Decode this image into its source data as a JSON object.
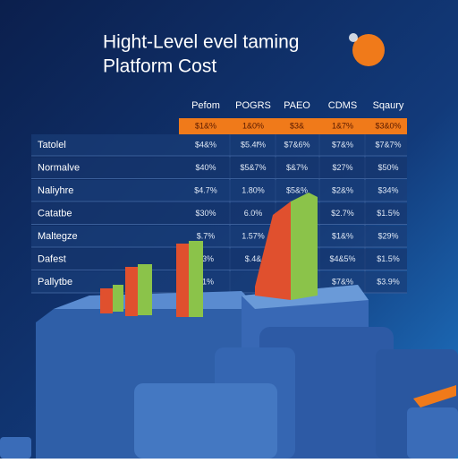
{
  "title": {
    "line1": "Hight-Level evel taming",
    "line2": "Platform Cost"
  },
  "table": {
    "header": [
      "Pefom",
      "POGRS",
      "PAEO",
      "CDMS",
      "Sqaury"
    ],
    "highlight": [
      "$1&%",
      "1&0%",
      "$3&",
      "1&7%",
      "$3&0%"
    ],
    "rows": [
      {
        "label": "Tatolel",
        "cells": [
          "$4&%",
          "$5.4f%",
          "$7&6%",
          "$7&%",
          "$7&7%"
        ]
      },
      {
        "label": "Normalve",
        "cells": [
          "$40%",
          "$5&7%",
          "$&7%",
          "$27%",
          "$50%"
        ]
      },
      {
        "label": "Naliyhre",
        "cells": [
          "$4.7%",
          "1.80%",
          "$5&%",
          "$2&%",
          "$34%"
        ]
      },
      {
        "label": "Catatbe",
        "cells": [
          "$30%",
          "6.0%",
          null,
          "$2.7%",
          "$1.5%"
        ]
      },
      {
        "label": "Maltegze",
        "cells": [
          "$.7%",
          "1.57%",
          null,
          "$1&%",
          "$29%"
        ]
      },
      {
        "label": "Dafest",
        "cells": [
          "$3%",
          "$.4&",
          null,
          "$4&5%",
          "$1.5%"
        ]
      },
      {
        "label": "Pallytbe",
        "cells": [
          "$1%",
          null,
          null,
          "$7&%",
          "$3.9%"
        ]
      }
    ]
  }
}
